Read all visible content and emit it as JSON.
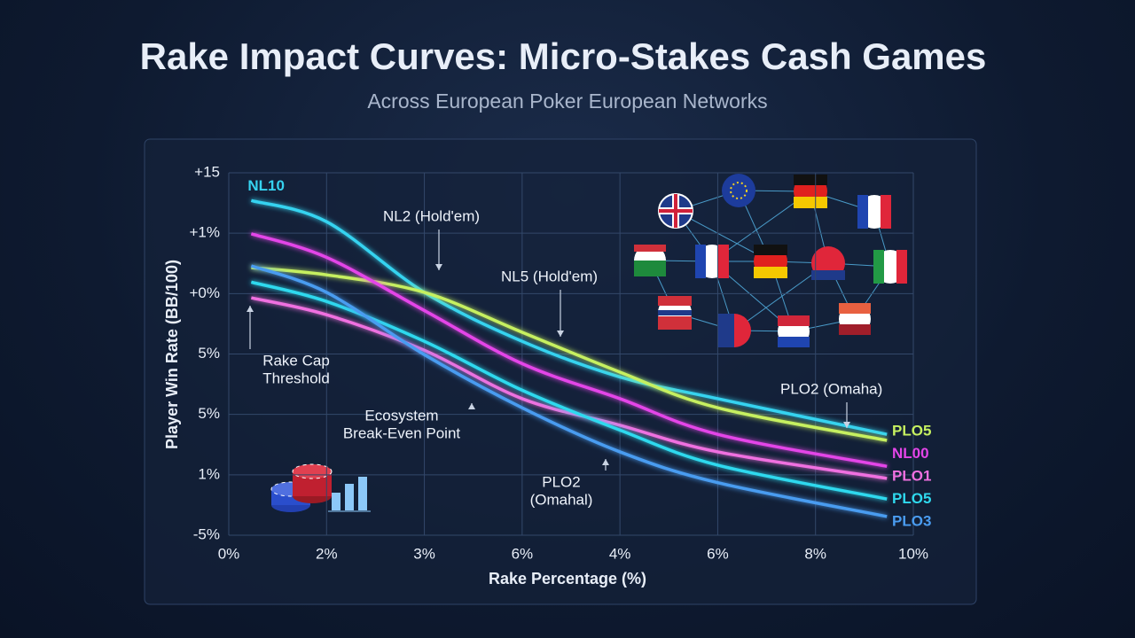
{
  "chart_data": {
    "type": "line",
    "title": "Rake Impact Curves: Micro-Stakes Cash Games",
    "subtitle": "Across European Poker European Networks",
    "x_label": "Rake Percentage (%)",
    "y_label": "Player Win Rate (BB/100)",
    "xlim": [
      0,
      7
    ],
    "xticks": [
      {
        "value": 0,
        "label": "0%"
      },
      {
        "value": 1,
        "label": "2%"
      },
      {
        "value": 2,
        "label": "3%"
      },
      {
        "value": 3,
        "label": "6%"
      },
      {
        "value": 4,
        "label": "4%"
      },
      {
        "value": 5,
        "label": "6%"
      },
      {
        "value": 6,
        "label": "8%"
      },
      {
        "value": 7,
        "label": "10%"
      }
    ],
    "ylim": [
      0,
      6
    ],
    "yticks": [
      {
        "value": 0,
        "label": "-5%"
      },
      {
        "value": 1,
        "label": "1%"
      },
      {
        "value": 2,
        "label": "5%"
      },
      {
        "value": 3,
        "label": "5%"
      },
      {
        "value": 4,
        "label": "+0%"
      },
      {
        "value": 5,
        "label": "+1%"
      },
      {
        "value": 6,
        "label": "+15"
      }
    ],
    "grid": true,
    "x": [
      0.23,
      1,
      2,
      3,
      4,
      5,
      6.73
    ],
    "series": [
      {
        "name": "NL10",
        "color": "#36d3f0",
        "values": [
          5.54,
          5.19,
          4.02,
          3.21,
          2.62,
          2.26,
          1.67
        ]
      },
      {
        "name": "PLO5",
        "color": "#c6f060",
        "values": [
          4.43,
          4.31,
          4.02,
          3.36,
          2.7,
          2.11,
          1.57
        ]
      },
      {
        "name": "NL00",
        "color": "#e445e8",
        "values": [
          4.99,
          4.6,
          3.72,
          2.84,
          2.26,
          1.67,
          1.14
        ]
      },
      {
        "name": "PLO1",
        "color": "#f070e0",
        "values": [
          3.93,
          3.65,
          3.06,
          2.26,
          1.82,
          1.38,
          0.94
        ]
      },
      {
        "name": "PLO5",
        "color": "#2fd9ee",
        "values": [
          4.19,
          3.87,
          3.21,
          2.4,
          1.74,
          1.16,
          0.6
        ]
      },
      {
        "name": "PLO3",
        "color": "#4a9cf0",
        "values": [
          4.46,
          4.02,
          2.99,
          2.11,
          1.38,
          0.87,
          0.31
        ]
      }
    ],
    "annotations": [
      {
        "lines": [
          "NL2 (Hold'em)"
        ]
      },
      {
        "lines": [
          "NL5 (Hold'em)"
        ]
      },
      {
        "lines": [
          "PLO2 (Omaha)"
        ]
      },
      {
        "lines": [
          "Rake Cap",
          "Threshold"
        ]
      },
      {
        "lines": [
          "Ecosystem",
          "Break-Even Point"
        ]
      },
      {
        "lines": [
          "PLO2",
          "(Omahal)"
        ]
      }
    ]
  }
}
